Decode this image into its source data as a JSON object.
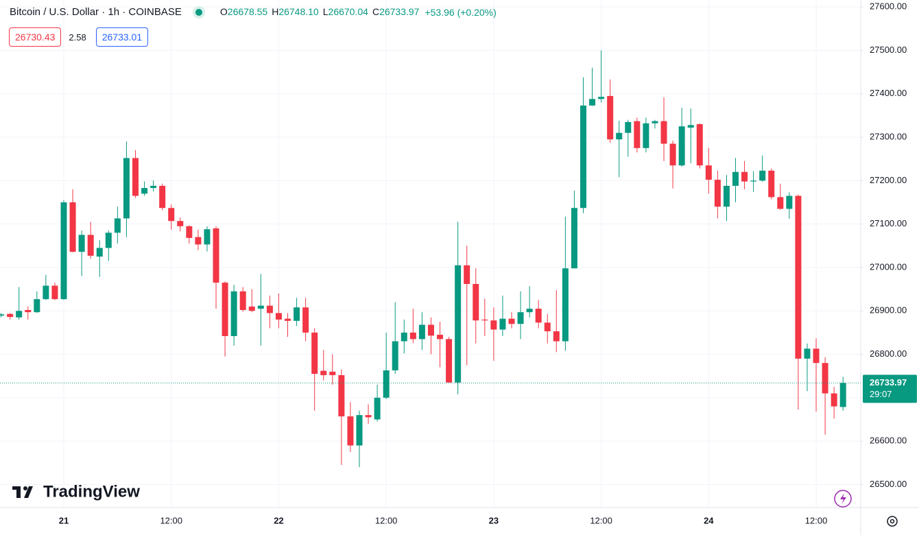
{
  "header": {
    "symbol": "Bitcoin / U.S. Dollar · 1h · COINBASE",
    "ohlc": [
      {
        "key": "O",
        "value": "26678.55"
      },
      {
        "key": "H",
        "value": "26748.10"
      },
      {
        "key": "L",
        "value": "26670.04"
      },
      {
        "key": "C",
        "value": "26733.97"
      }
    ],
    "change": "+53.96 (+0.20%)",
    "sell": 26730.43,
    "spread": 2.58,
    "buy": 26733.01,
    "countdown": "29:07",
    "logo": "TradingView"
  },
  "chart_data": {
    "type": "candlestick",
    "up_color": "#089981",
    "down_color": "#f23645",
    "grid": true,
    "categories": [
      null,
      null,
      null,
      null,
      null,
      null,
      null,
      "21",
      null,
      null,
      null,
      null,
      null,
      null,
      null,
      null,
      null,
      null,
      null,
      "12:00",
      null,
      null,
      null,
      null,
      null,
      null,
      null,
      null,
      null,
      null,
      null,
      "22",
      null,
      null,
      null,
      null,
      null,
      null,
      null,
      null,
      null,
      null,
      null,
      "12:00",
      null,
      null,
      null,
      null,
      null,
      null,
      null,
      null,
      null,
      null,
      null,
      "23",
      null,
      null,
      null,
      null,
      null,
      null,
      null,
      null,
      null,
      null,
      null,
      "12:00",
      null,
      null,
      null,
      null,
      null,
      null,
      null,
      null,
      null,
      null,
      null,
      "24",
      null,
      null,
      null,
      null,
      null,
      null,
      null,
      null,
      null,
      null,
      null,
      "12:00",
      null,
      null,
      null
    ],
    "open": [
      26889,
      26893,
      26885,
      26902,
      26897,
      26927,
      26958,
      26927,
      27150,
      27036,
      27075,
      27025,
      27045,
      27080,
      27113,
      27252,
      27170,
      27183,
      27188,
      27137,
      27107,
      27095,
      27070,
      27053,
      27090,
      26965,
      26842,
      26945,
      26910,
      26905,
      26912,
      26895,
      26882,
      26877,
      26908,
      26850,
      26762,
      26760,
      26752,
      26657,
      26590,
      26660,
      26650,
      26700,
      26763,
      26830,
      26850,
      26835,
      26868,
      26845,
      26835,
      26735,
      27005,
      26962,
      26880,
      26878,
      26857,
      26882,
      26870,
      26897,
      26905,
      26873,
      26853,
      26830,
      26998,
      27137,
      27373,
      27388,
      27395,
      27295,
      27310,
      27337,
      27275,
      27332,
      27337,
      27285,
      27235,
      27322,
      27330,
      27235,
      27202,
      27140,
      27188,
      27220,
      27198,
      27200,
      27223,
      27162,
      27135,
      27165,
      26790,
      26813,
      26780,
      26710,
      26678.55
    ],
    "high": [
      26895,
      26895,
      26955,
      26910,
      26945,
      26983,
      26965,
      27155,
      27180,
      27085,
      27105,
      27063,
      27085,
      27140,
      27290,
      27270,
      27198,
      27200,
      27193,
      27145,
      27115,
      27097,
      27087,
      27095,
      27095,
      26968,
      26960,
      26955,
      26950,
      26985,
      26935,
      26940,
      26895,
      26930,
      26930,
      26860,
      26810,
      26800,
      26765,
      26690,
      26670,
      26685,
      26730,
      26850,
      26920,
      26880,
      26905,
      26897,
      26885,
      26875,
      26840,
      27105,
      27050,
      26998,
      26928,
      26908,
      26935,
      26897,
      26945,
      26957,
      26925,
      26893,
      26948,
      27117,
      27177,
      27438,
      27460,
      27500,
      27433,
      27338,
      27340,
      27345,
      27345,
      27340,
      27392,
      27292,
      27368,
      27366,
      27332,
      27275,
      27223,
      27213,
      27252,
      27245,
      27222,
      27258,
      27228,
      27193,
      27173,
      27168,
      26825,
      26837,
      26793,
      26725,
      26748.1
    ],
    "low": [
      26885,
      26880,
      26880,
      26880,
      26895,
      26925,
      26925,
      26925,
      27035,
      26980,
      27020,
      26978,
      27015,
      27055,
      27070,
      27160,
      27165,
      27175,
      27132,
      27087,
      27083,
      27055,
      27040,
      27037,
      26905,
      26795,
      26820,
      26898,
      26897,
      26820,
      26860,
      26860,
      26840,
      26865,
      26830,
      26670,
      26740,
      26730,
      26545,
      26575,
      26540,
      26640,
      26645,
      26697,
      26755,
      26802,
      26826,
      26810,
      26800,
      26770,
      26735,
      26708,
      26775,
      26825,
      26842,
      26785,
      26842,
      26860,
      26835,
      26885,
      26860,
      26825,
      26805,
      26808,
      26998,
      27125,
      27372,
      27380,
      27287,
      27208,
      27255,
      27265,
      27265,
      27320,
      27245,
      27182,
      27232,
      27240,
      27228,
      27170,
      27113,
      27107,
      27150,
      27180,
      27174,
      27197,
      27157,
      27133,
      27112,
      26673,
      26715,
      26668,
      26615,
      26652,
      26670.04
    ],
    "close": [
      26892,
      26886,
      26900,
      26897,
      26927,
      26958,
      26927,
      27150,
      27036,
      27075,
      27027,
      27045,
      27080,
      27113,
      27252,
      27165,
      27183,
      27188,
      27137,
      27107,
      27095,
      27068,
      27053,
      27088,
      26965,
      26842,
      26945,
      26902,
      26900,
      26912,
      26895,
      26880,
      26877,
      26908,
      26850,
      26755,
      26752,
      26752,
      26657,
      26590,
      26660,
      26655,
      26700,
      26763,
      26830,
      26850,
      26835,
      26868,
      26843,
      26835,
      26735,
      27005,
      26962,
      26878,
      26878,
      26857,
      26882,
      26870,
      26897,
      26905,
      26873,
      26853,
      26830,
      26998,
      27137,
      27373,
      27388,
      27393,
      27295,
      27310,
      27335,
      27275,
      27332,
      27337,
      27285,
      27235,
      27325,
      27328,
      27235,
      27202,
      27140,
      27188,
      27220,
      27198,
      27200,
      27223,
      27162,
      27135,
      27165,
      26790,
      26813,
      26780,
      26710,
      26680,
      26733.97
    ],
    "ylim": [
      26447,
      27616
    ],
    "yticks": [
      {
        "value": 26500,
        "label": "26500.00"
      },
      {
        "value": 26600,
        "label": "26600.00"
      },
      {
        "value": 26700,
        "label": "26700.00"
      },
      {
        "value": 26800,
        "label": "26800.00"
      },
      {
        "value": 26900,
        "label": "26900.00"
      },
      {
        "value": 27000,
        "label": "27000.00"
      },
      {
        "value": 27100,
        "label": "27100.00"
      },
      {
        "value": 27200,
        "label": "27200.00"
      },
      {
        "value": 27300,
        "label": "27300.00"
      },
      {
        "value": 27400,
        "label": "27400.00"
      },
      {
        "value": 27500,
        "label": "27500.00"
      },
      {
        "value": 27600,
        "label": "27600.00"
      }
    ]
  }
}
